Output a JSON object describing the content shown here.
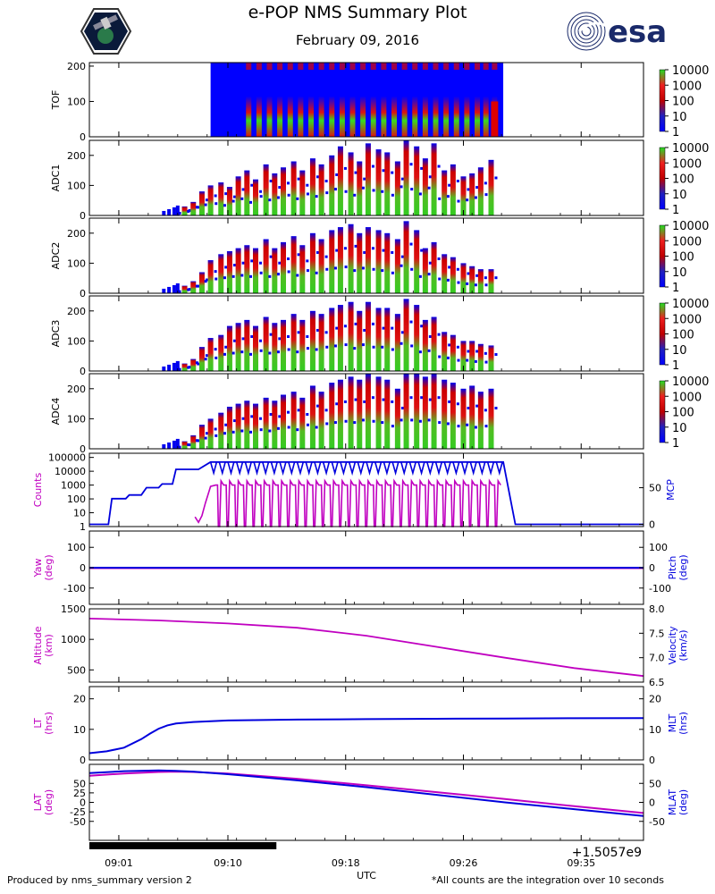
{
  "title": "e-POP NMS Summary Plot",
  "date": "February 09, 2016",
  "esa_logo_text": "esa",
  "footer_left": "Produced by nms_summary version 2",
  "footer_right": "*All counts are the integration over 10 seconds",
  "offset_label": "+1.5057e9",
  "colors": {
    "magenta": "#c000c0",
    "blue": "#0000dd",
    "bg_blue": "#0000ff",
    "red": "#dd0000",
    "green": "#22cc22"
  },
  "chart_data": [
    {
      "type": "heatmap",
      "panel": "TOF",
      "ylabel": "TOF",
      "ylim": [
        0,
        210
      ],
      "yticks": [
        0,
        100,
        200
      ],
      "colorbar_ticks": [
        "10000",
        "1000",
        "100",
        "10",
        "1"
      ],
      "bright_rows": [
        100,
        210
      ],
      "peak_times": [
        9.2,
        9.8,
        10.4,
        11.0,
        11.6,
        12.2,
        12.8,
        13.4,
        14.0,
        14.6,
        15.2,
        15.8,
        16.4,
        17.0,
        17.6,
        18.2,
        18.8,
        19.4,
        20.0,
        20.6,
        21.2,
        21.8,
        22.4,
        22.9,
        23.4
      ]
    },
    {
      "type": "heatmap",
      "panel": "ADC1",
      "ylabel": "ADC1",
      "ylim": [
        0,
        250
      ],
      "yticks": [
        0,
        100,
        200
      ],
      "colorbar_ticks": [
        "10000",
        "1000",
        "100",
        "10",
        "1"
      ],
      "peak_times": [
        5.5,
        6.0,
        6.5,
        7.0,
        7.6,
        8.1,
        8.6,
        9.1,
        9.6,
        10.2,
        10.7,
        11.2,
        11.8,
        12.3,
        12.9,
        13.4,
        14.0,
        14.5,
        15.1,
        15.6,
        16.1,
        16.7,
        17.2,
        17.8,
        18.3,
        18.9,
        19.4,
        19.9,
        20.5,
        21.0,
        21.6,
        22.1,
        22.6,
        23.2
      ],
      "peak_heights": [
        30,
        45,
        80,
        100,
        110,
        95,
        130,
        150,
        120,
        170,
        140,
        160,
        180,
        150,
        190,
        170,
        200,
        230,
        210,
        180,
        240,
        220,
        210,
        180,
        250,
        230,
        190,
        240,
        150,
        170,
        130,
        140,
        160,
        185
      ]
    },
    {
      "type": "heatmap",
      "panel": "ADC2",
      "ylabel": "ADC2",
      "ylim": [
        0,
        250
      ],
      "yticks": [
        0,
        100,
        200
      ],
      "colorbar_ticks": [
        "10000",
        "1000",
        "100",
        "10",
        "1"
      ],
      "peak_times": [
        5.5,
        6.0,
        6.5,
        7.0,
        7.6,
        8.1,
        8.6,
        9.1,
        9.6,
        10.2,
        10.7,
        11.2,
        11.8,
        12.3,
        12.9,
        13.4,
        14.0,
        14.5,
        15.1,
        15.6,
        16.1,
        16.7,
        17.2,
        17.8,
        18.3,
        18.9,
        19.4,
        19.9,
        20.5,
        21.0,
        21.6,
        22.1,
        22.6,
        23.2
      ],
      "peak_heights": [
        25,
        40,
        70,
        110,
        130,
        140,
        150,
        160,
        150,
        180,
        150,
        170,
        190,
        160,
        200,
        180,
        210,
        220,
        230,
        200,
        220,
        210,
        200,
        180,
        240,
        210,
        150,
        170,
        130,
        120,
        100,
        90,
        80,
        80
      ]
    },
    {
      "type": "heatmap",
      "panel": "ADC3",
      "ylabel": "ADC3",
      "ylim": [
        0,
        250
      ],
      "yticks": [
        0,
        100,
        200
      ],
      "colorbar_ticks": [
        "10000",
        "1000",
        "100",
        "10",
        "1"
      ],
      "peak_times": [
        5.5,
        6.0,
        6.5,
        7.0,
        7.6,
        8.1,
        8.6,
        9.1,
        9.6,
        10.2,
        10.7,
        11.2,
        11.8,
        12.3,
        12.9,
        13.4,
        14.0,
        14.5,
        15.1,
        15.6,
        16.1,
        16.7,
        17.2,
        17.8,
        18.3,
        18.9,
        19.4,
        19.9,
        20.5,
        21.0,
        21.6,
        22.1,
        22.6,
        23.2
      ],
      "peak_heights": [
        25,
        40,
        80,
        110,
        120,
        150,
        160,
        170,
        150,
        180,
        160,
        170,
        190,
        170,
        200,
        190,
        210,
        220,
        230,
        200,
        230,
        210,
        210,
        190,
        240,
        220,
        170,
        180,
        130,
        120,
        100,
        100,
        90,
        85
      ]
    },
    {
      "type": "heatmap",
      "panel": "ADC4",
      "ylabel": "ADC4",
      "ylim": [
        0,
        250
      ],
      "yticks": [
        0,
        100,
        200
      ],
      "colorbar_ticks": [
        "10000",
        "1000",
        "100",
        "10",
        "1"
      ],
      "peak_times": [
        5.5,
        6.0,
        6.5,
        7.0,
        7.6,
        8.1,
        8.6,
        9.1,
        9.6,
        10.2,
        10.7,
        11.2,
        11.8,
        12.3,
        12.9,
        13.4,
        14.0,
        14.5,
        15.1,
        15.6,
        16.1,
        16.7,
        17.2,
        17.8,
        18.3,
        18.9,
        19.4,
        19.9,
        20.5,
        21.0,
        21.6,
        22.1,
        22.6,
        23.2
      ],
      "peak_heights": [
        25,
        45,
        80,
        100,
        120,
        140,
        150,
        160,
        150,
        170,
        160,
        180,
        190,
        170,
        210,
        190,
        220,
        230,
        240,
        230,
        250,
        240,
        230,
        200,
        250,
        250,
        240,
        250,
        230,
        220,
        200,
        210,
        190,
        200
      ]
    },
    {
      "type": "line",
      "panel": "counts",
      "ylabel": "Counts",
      "y2label": "MCP",
      "yscale": "log",
      "ylim": [
        1,
        200000
      ],
      "yticks": [
        "1",
        "10",
        "100",
        "1000",
        "10000",
        "100000"
      ],
      "y2lim": [
        -3,
        97
      ],
      "y2ticks": [
        0,
        50
      ],
      "counts_series": {
        "name": "Counts",
        "start": 6.1,
        "end": 23.5,
        "base": 1000,
        "period": 0.5
      },
      "mcp_series": {
        "name": "MCP",
        "x": [
          0,
          1.1,
          1.3,
          2.1,
          2.3,
          3.0,
          3.3,
          4.0,
          4.2,
          4.8,
          5.0,
          6.3,
          7.0,
          23.9,
          24.6,
          32
        ],
        "y": [
          0,
          0,
          35,
          35,
          40,
          40,
          50,
          50,
          55,
          55,
          75,
          75,
          85,
          85,
          0,
          0
        ]
      }
    },
    {
      "type": "line",
      "panel": "yaw_pitch",
      "ylabel": "Yaw\n(deg)",
      "y2label": "Pitch\n(deg)",
      "ylim": [
        -180,
        180
      ],
      "yticks": [
        -100,
        0,
        100
      ],
      "y2ticks": [
        -100,
        0,
        100
      ],
      "series": [
        {
          "name": "Yaw",
          "x": [
            0,
            32
          ],
          "y": [
            0,
            0
          ]
        },
        {
          "name": "Pitch",
          "x": [
            0,
            32
          ],
          "y": [
            0,
            0
          ]
        }
      ]
    },
    {
      "type": "line",
      "panel": "altitude_velocity",
      "ylabel": "Altitude\n(km)",
      "y2label": "Velocity\n(km/s)",
      "ylim": [
        300,
        1500
      ],
      "yticks": [
        500,
        1000,
        1500
      ],
      "y2lim": [
        6.5,
        8.0
      ],
      "y2ticks": [
        "6.5",
        "7.0",
        "7.5",
        "8.0"
      ],
      "series": [
        {
          "name": "Altitude",
          "x": [
            0,
            4,
            8,
            12,
            16,
            20,
            24,
            28,
            32
          ],
          "y": [
            1340,
            1310,
            1260,
            1190,
            1060,
            880,
            700,
            530,
            400
          ]
        }
      ]
    },
    {
      "type": "line",
      "panel": "lt_mlt",
      "ylabel": "LT\n(hrs)",
      "y2label": "MLT\n(hrs)",
      "ylim": [
        0,
        24
      ],
      "yticks": [
        0,
        10,
        20
      ],
      "y2ticks": [
        0,
        10,
        20
      ],
      "series": [
        {
          "name": "MLT",
          "x": [
            0,
            1,
            2,
            3,
            3.5,
            4,
            4.5,
            5,
            6,
            8,
            12,
            16,
            20,
            24,
            28,
            32
          ],
          "y": [
            2.2,
            2.8,
            4,
            6.8,
            8.6,
            10.2,
            11.3,
            11.9,
            12.4,
            12.9,
            13.2,
            13.35,
            13.45,
            13.55,
            13.65,
            13.7
          ]
        }
      ]
    },
    {
      "type": "line",
      "panel": "lat_mlat",
      "ylabel": "LAT\n(deg)",
      "y2label": "MLAT\n(deg)",
      "ylim": [
        -100,
        100
      ],
      "yticks": [
        -50,
        -25,
        0,
        25,
        50
      ],
      "y2ticks": [
        -50,
        0,
        50
      ],
      "xlabel": "UTC",
      "xticks": [
        "09:01",
        "09:10",
        "09:18",
        "09:26",
        "09:35"
      ],
      "series": [
        {
          "name": "LAT",
          "x": [
            0,
            2,
            4,
            5,
            6,
            8,
            12,
            16,
            20,
            24,
            28,
            32
          ],
          "y": [
            70,
            76,
            80,
            81,
            80,
            76,
            62,
            45,
            27,
            9,
            -10,
            -28
          ]
        },
        {
          "name": "MLAT",
          "x": [
            0,
            2,
            4,
            5,
            6,
            8,
            12,
            16,
            20,
            24,
            28,
            32
          ],
          "y": [
            77,
            82,
            84,
            83,
            81,
            74,
            58,
            40,
            20,
            0,
            -18,
            -36
          ]
        }
      ]
    }
  ]
}
